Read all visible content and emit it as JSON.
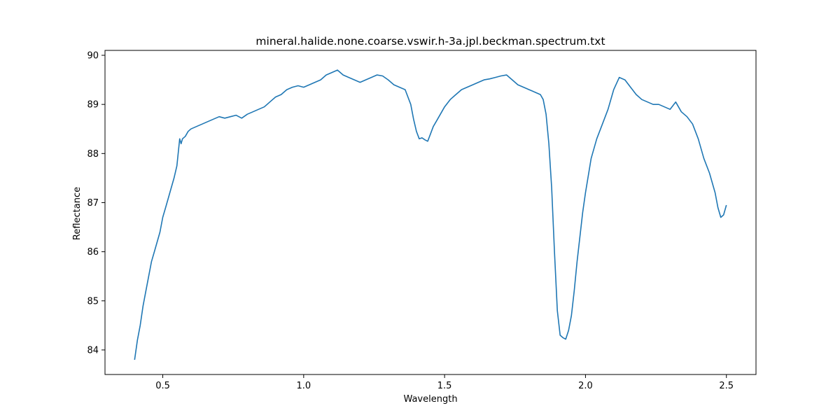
{
  "chart_data": {
    "type": "line",
    "title": "mineral.halide.none.coarse.vswir.h-3a.jpl.beckman.spectrum.txt",
    "xlabel": "Wavelength",
    "ylabel": "Reflectance",
    "xlim": [
      0.295,
      2.605
    ],
    "ylim": [
      83.5,
      90.1
    ],
    "xticks": [
      "0.5",
      "1.0",
      "1.5",
      "2.0",
      "2.5"
    ],
    "yticks": [
      "84",
      "85",
      "86",
      "87",
      "88",
      "89",
      "90"
    ],
    "grid": false,
    "line_color": "#1f77b4",
    "series": [
      {
        "x": [
          0.4,
          0.41,
          0.42,
          0.43,
          0.44,
          0.45,
          0.46,
          0.47,
          0.48,
          0.49,
          0.5,
          0.51,
          0.52,
          0.53,
          0.54,
          0.55,
          0.56,
          0.565,
          0.57,
          0.58,
          0.59,
          0.6,
          0.62,
          0.64,
          0.66,
          0.68,
          0.7,
          0.72,
          0.74,
          0.76,
          0.78,
          0.8,
          0.82,
          0.84,
          0.86,
          0.88,
          0.9,
          0.92,
          0.94,
          0.96,
          0.98,
          1.0,
          1.02,
          1.04,
          1.06,
          1.08,
          1.1,
          1.12,
          1.14,
          1.16,
          1.18,
          1.2,
          1.22,
          1.24,
          1.26,
          1.28,
          1.3,
          1.32,
          1.34,
          1.36,
          1.38,
          1.39,
          1.4,
          1.41,
          1.42,
          1.43,
          1.44,
          1.45,
          1.46,
          1.47,
          1.48,
          1.5,
          1.52,
          1.54,
          1.56,
          1.58,
          1.6,
          1.62,
          1.64,
          1.66,
          1.68,
          1.7,
          1.72,
          1.74,
          1.76,
          1.78,
          1.8,
          1.82,
          1.84,
          1.85,
          1.86,
          1.87,
          1.88,
          1.89,
          1.9,
          1.91,
          1.92,
          1.93,
          1.94,
          1.95,
          1.96,
          1.97,
          1.98,
          1.99,
          2.0,
          2.02,
          2.04,
          2.06,
          2.08,
          2.1,
          2.12,
          2.14,
          2.16,
          2.18,
          2.2,
          2.22,
          2.24,
          2.26,
          2.28,
          2.3,
          2.32,
          2.34,
          2.36,
          2.38,
          2.4,
          2.42,
          2.44,
          2.46,
          2.47,
          2.48,
          2.49,
          2.5
        ],
        "y": [
          83.8,
          84.2,
          84.5,
          84.9,
          85.2,
          85.5,
          85.8,
          86.0,
          86.2,
          86.4,
          86.7,
          86.9,
          87.1,
          87.3,
          87.5,
          87.75,
          88.3,
          88.2,
          88.3,
          88.35,
          88.45,
          88.5,
          88.55,
          88.6,
          88.65,
          88.7,
          88.75,
          88.72,
          88.75,
          88.78,
          88.72,
          88.8,
          88.85,
          88.9,
          88.95,
          89.05,
          89.15,
          89.2,
          89.3,
          89.35,
          89.38,
          89.35,
          89.4,
          89.45,
          89.5,
          89.6,
          89.65,
          89.7,
          89.6,
          89.55,
          89.5,
          89.45,
          89.5,
          89.55,
          89.6,
          89.58,
          89.5,
          89.4,
          89.35,
          89.3,
          89.0,
          88.7,
          88.45,
          88.3,
          88.32,
          88.28,
          88.25,
          88.4,
          88.55,
          88.65,
          88.75,
          88.95,
          89.1,
          89.2,
          89.3,
          89.35,
          89.4,
          89.45,
          89.5,
          89.52,
          89.55,
          89.58,
          89.6,
          89.5,
          89.4,
          89.35,
          89.3,
          89.25,
          89.2,
          89.1,
          88.8,
          88.2,
          87.3,
          86.0,
          84.8,
          84.3,
          84.25,
          84.22,
          84.4,
          84.7,
          85.2,
          85.8,
          86.3,
          86.8,
          87.2,
          87.9,
          88.3,
          88.6,
          88.9,
          89.3,
          89.55,
          89.5,
          89.35,
          89.2,
          89.1,
          89.05,
          89.0,
          89.0,
          88.95,
          88.9,
          89.05,
          88.85,
          88.75,
          88.6,
          88.3,
          87.9,
          87.6,
          87.2,
          86.9,
          86.7,
          86.75,
          86.95
        ]
      }
    ]
  }
}
